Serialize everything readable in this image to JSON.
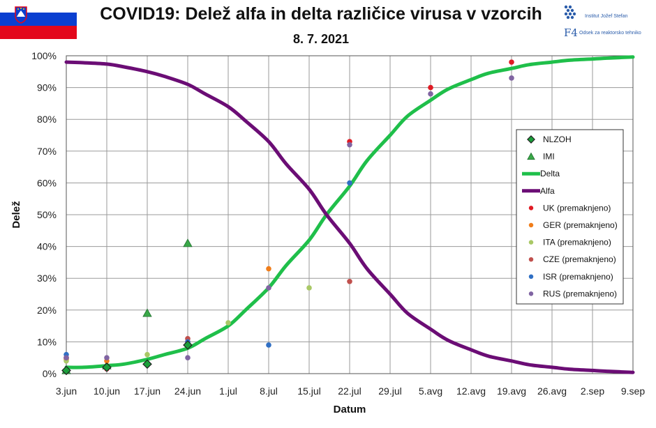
{
  "colors": {
    "delta": "#1fbf4a",
    "alfa": "#6b0d75",
    "uk": "#e01b24",
    "ger": "#f07d1a",
    "ita": "#a9c866",
    "cze": "#c0504d",
    "isr": "#2f6fc4",
    "rus": "#8064a2",
    "nlzoh": "#1a9f3a",
    "imi": "#3aa848"
  },
  "logos": {
    "ijs": "Institut Jožef Stefan",
    "odsek_mark": "F4",
    "odsek": "Odsek za reaktorsko tehniko"
  },
  "chart_data": {
    "type": "line",
    "title": "COVID19: Delež alfa in delta različice virusa v vzorcih",
    "subtitle": "8. 7. 2021",
    "xlabel": "Datum",
    "ylabel": "Delež",
    "x_unit": "days since 3.jun",
    "xlim": [
      0,
      98
    ],
    "ylim": [
      0,
      100
    ],
    "x_ticks": [
      {
        "x": 0,
        "label": "3.jun"
      },
      {
        "x": 7,
        "label": "10.jun"
      },
      {
        "x": 14,
        "label": "17.jun"
      },
      {
        "x": 21,
        "label": "24.jun"
      },
      {
        "x": 28,
        "label": "1.jul"
      },
      {
        "x": 35,
        "label": "8.jul"
      },
      {
        "x": 42,
        "label": "15.jul"
      },
      {
        "x": 49,
        "label": "22.jul"
      },
      {
        "x": 56,
        "label": "29.jul"
      },
      {
        "x": 63,
        "label": "5.avg"
      },
      {
        "x": 70,
        "label": "12.avg"
      },
      {
        "x": 77,
        "label": "19.avg"
      },
      {
        "x": 84,
        "label": "26.avg"
      },
      {
        "x": 91,
        "label": "2.sep"
      },
      {
        "x": 98,
        "label": "9.sep"
      }
    ],
    "y_ticks": [
      {
        "y": 0,
        "label": "0%"
      },
      {
        "y": 10,
        "label": "10%"
      },
      {
        "y": 20,
        "label": "20%"
      },
      {
        "y": 30,
        "label": "30%"
      },
      {
        "y": 40,
        "label": "40%"
      },
      {
        "y": 50,
        "label": "50%"
      },
      {
        "y": 60,
        "label": "60%"
      },
      {
        "y": 70,
        "label": "70%"
      },
      {
        "y": 80,
        "label": "80%"
      },
      {
        "y": 90,
        "label": "90%"
      },
      {
        "y": 100,
        "label": "100%"
      }
    ],
    "grid": true,
    "legend_position": "right",
    "lines": [
      {
        "key": "delta",
        "name": "Delta",
        "x": [
          0,
          3,
          7,
          10,
          14,
          17,
          21,
          24,
          28,
          31,
          35,
          38,
          42,
          45,
          49,
          52,
          56,
          59,
          63,
          66,
          70,
          73,
          77,
          80,
          84,
          87,
          91,
          94,
          98
        ],
        "y": [
          2,
          2,
          2.5,
          3,
          4.5,
          6,
          8,
          11,
          15,
          20,
          27,
          34,
          42,
          50,
          59,
          67,
          75,
          81,
          86,
          89.5,
          92.5,
          94.5,
          96,
          97.2,
          98,
          98.6,
          99,
          99.3,
          99.6
        ]
      },
      {
        "key": "alfa",
        "name": "Alfa",
        "x": [
          0,
          3,
          7,
          10,
          14,
          17,
          21,
          24,
          28,
          31,
          35,
          38,
          42,
          45,
          49,
          52,
          56,
          59,
          63,
          66,
          70,
          73,
          77,
          80,
          84,
          87,
          91,
          94,
          98
        ],
        "y": [
          98,
          97.8,
          97.4,
          96.5,
          95,
          93.5,
          91,
          88,
          84,
          79.5,
          73,
          66,
          58,
          50,
          41,
          33,
          25,
          19,
          14,
          10.5,
          7.5,
          5.5,
          4,
          2.8,
          2,
          1.4,
          1,
          0.7,
          0.4
        ]
      }
    ],
    "scatter": [
      {
        "key": "nlzoh",
        "name": "NLZOH",
        "marker": "diamond",
        "x": [
          0,
          7,
          14,
          21
        ],
        "y": [
          1,
          2,
          3,
          9
        ]
      },
      {
        "key": "imi",
        "name": "IMI",
        "marker": "triangle",
        "x": [
          0,
          7,
          14,
          21
        ],
        "y": [
          1,
          2.5,
          19,
          41
        ]
      },
      {
        "key": "uk",
        "name": "UK (premaknjeno)",
        "marker": "circle",
        "x": [
          0,
          7,
          21,
          49,
          63,
          77
        ],
        "y": [
          5,
          1.5,
          10,
          73,
          90,
          98
        ]
      },
      {
        "key": "ger",
        "name": "GER (premaknjeno)",
        "marker": "circle",
        "x": [
          0,
          7,
          35
        ],
        "y": [
          4.5,
          4,
          33
        ]
      },
      {
        "key": "ita",
        "name": "ITA (premaknjeno)",
        "marker": "circle",
        "x": [
          0,
          14,
          28,
          42
        ],
        "y": [
          4,
          6,
          16,
          27
        ]
      },
      {
        "key": "cze",
        "name": "CZE (premaknjeno)",
        "marker": "circle",
        "x": [
          0,
          21,
          49
        ],
        "y": [
          5,
          11,
          29
        ]
      },
      {
        "key": "isr",
        "name": "ISR (premaknjeno)",
        "marker": "circle",
        "x": [
          0,
          21,
          35,
          49
        ],
        "y": [
          6,
          10,
          9,
          60
        ]
      },
      {
        "key": "rus",
        "name": "RUS (premaknjeno)",
        "marker": "circle",
        "x": [
          0,
          7,
          21,
          35,
          49,
          63,
          77
        ],
        "y": [
          5,
          5,
          5,
          27,
          72,
          88,
          93
        ]
      }
    ],
    "legend_order": [
      "nlzoh",
      "imi",
      "delta",
      "alfa",
      "uk",
      "ger",
      "ita",
      "cze",
      "isr",
      "rus"
    ]
  }
}
